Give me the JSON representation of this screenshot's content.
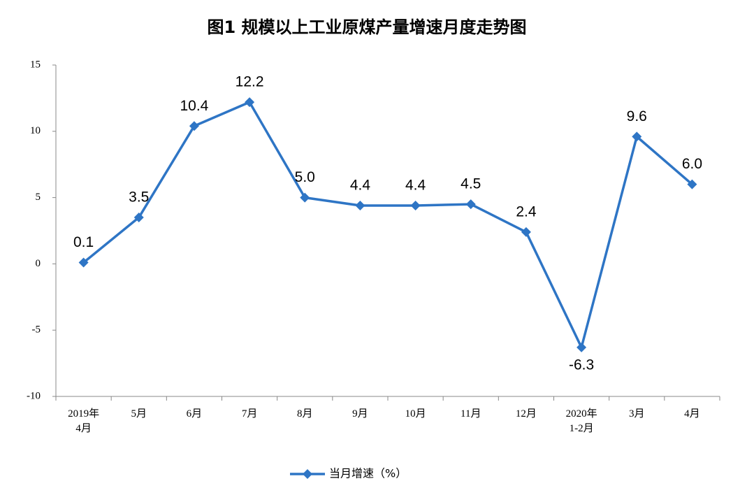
{
  "chart_data": {
    "type": "line",
    "title": "图1  规模以上工业原煤产量增速月度走势图",
    "categories": [
      "2019年\n4月",
      "5月",
      "6月",
      "7月",
      "8月",
      "9月",
      "10月",
      "11月",
      "12月",
      "2020年\n1-2月",
      "3月",
      "4月"
    ],
    "series": [
      {
        "name": "当月增速（%）",
        "color": "#2e75c5",
        "values": [
          0.1,
          3.5,
          10.4,
          12.2,
          5.0,
          4.4,
          4.4,
          4.5,
          2.4,
          -6.3,
          9.6,
          6.0
        ],
        "value_labels": [
          "0.1",
          "3.5",
          "10.4",
          "12.2",
          "5.0",
          "4.4",
          "4.4",
          "4.5",
          "2.4",
          "-6.3",
          "9.6",
          "6.0"
        ]
      }
    ],
    "ylim": [
      -10,
      15
    ],
    "yticks": [
      -10,
      -5,
      0,
      5,
      10,
      15
    ],
    "grid": false,
    "legend": "bottom"
  }
}
